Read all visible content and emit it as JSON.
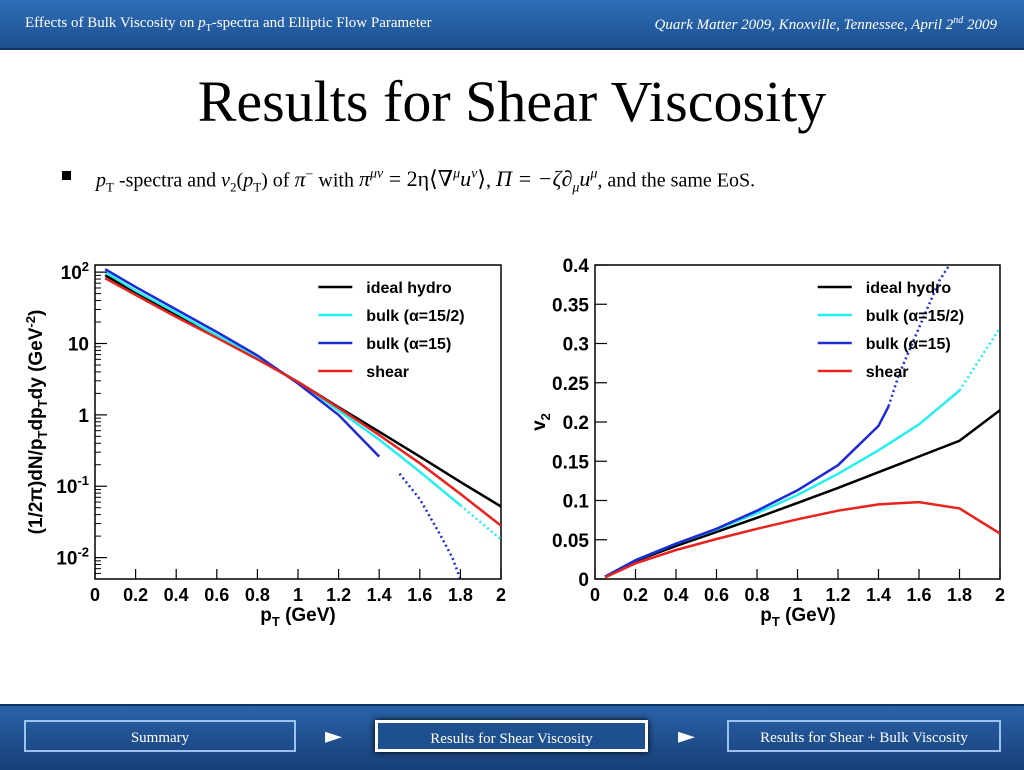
{
  "header": {
    "left_prefix": "Effects of Bulk Viscosity on ",
    "left_p": "p",
    "left_sub": "T",
    "left_suffix": "-spectra and Elliptic Flow Parameter",
    "right_prefix": "Quark Matter 2009, Knoxville, Tennessee, April 2",
    "right_sup": "nd",
    "right_suffix": " 2009"
  },
  "slide_title": "Results for Shear Viscosity",
  "bullet": {
    "p": "p",
    "sub_T": "T",
    "t1": " -spectra and ",
    "v": "v",
    "sub_2": "2",
    "t2": "(",
    "t3": ") of ",
    "pion": "π",
    "pion_sup": "−",
    "t4": " with ",
    "eq1": "π",
    "eq1_sup": "μν",
    "eq1_rest": " = 2η⟨∇",
    "eq1_sup2": "μ",
    "eq1_u": "u",
    "eq1_sup3": "ν",
    "eq1_close": "⟩",
    "comma1": ", ",
    "eq2": "Π = −ζ∂",
    "eq2_sub": "μ",
    "eq2_u": "u",
    "eq2_sup": "μ",
    "t5": ", and the same EoS."
  },
  "legend": [
    {
      "label": "ideal hydro",
      "color": "#000000"
    },
    {
      "label": "bulk (α=15/2)",
      "color": "#22f0f0"
    },
    {
      "label": "bulk (α=15)",
      "color": "#1d2bd6"
    },
    {
      "label": "shear",
      "color": "#e8221d"
    }
  ],
  "chart_data": [
    {
      "type": "line",
      "ylabel": "(1/2π)dN/pTdpTdy (GeV^-2)",
      "xlabel": "pT (GeV)",
      "xlim": [
        0,
        2
      ],
      "ylim_log10": [
        -2.3,
        2.1
      ],
      "log_y": true,
      "xticks": [
        "0",
        "0.2",
        "0.4",
        "0.6",
        "0.8",
        "1",
        "1.2",
        "1.4",
        "1.6",
        "1.8",
        "2"
      ],
      "yticks": [
        {
          "base": "10",
          "exp": "2"
        },
        {
          "base": "10",
          "exp": ""
        },
        {
          "base": "1",
          "exp": ""
        },
        {
          "base": "10",
          "exp": "-1"
        },
        {
          "base": "10",
          "exp": "-2"
        }
      ],
      "series": [
        {
          "name": "ideal hydro",
          "x": [
            0.05,
            0.2,
            0.4,
            0.6,
            0.8,
            1.0,
            1.2,
            1.4,
            1.6,
            1.8,
            2.0
          ],
          "y": [
            90,
            52,
            25,
            12.5,
            6.2,
            2.9,
            1.28,
            0.58,
            0.26,
            0.115,
            0.052
          ]
        },
        {
          "name": "bulk (α=15/2)",
          "x": [
            0.05,
            0.2,
            0.4,
            0.6,
            0.8,
            1.0,
            1.2,
            1.4,
            1.6,
            1.8,
            2.0
          ],
          "y": [
            100,
            55,
            27,
            13,
            6.3,
            2.85,
            1.15,
            0.45,
            0.16,
            0.054,
            0.018
          ],
          "dashed_from": 1.8
        },
        {
          "name": "bulk (α=15)",
          "x": [
            0.05,
            0.2,
            0.4,
            0.6,
            0.8,
            1.0,
            1.2,
            1.4,
            1.5,
            1.6,
            1.7,
            1.76,
            1.8
          ],
          "y": [
            110,
            62,
            30,
            14.5,
            6.8,
            2.75,
            1.0,
            0.26,
            0.15,
            0.066,
            0.021,
            0.01,
            0.005
          ],
          "dashed_from": 1.45
        },
        {
          "name": "shear",
          "x": [
            0.05,
            0.2,
            0.4,
            0.6,
            0.8,
            1.0,
            1.2,
            1.4,
            1.6,
            1.8,
            2.0
          ],
          "y": [
            82,
            48,
            23.5,
            12,
            6.0,
            2.9,
            1.25,
            0.52,
            0.21,
            0.078,
            0.028
          ]
        }
      ]
    },
    {
      "type": "line",
      "ylabel": "v2",
      "xlabel": "pT (GeV)",
      "xlim": [
        0,
        2
      ],
      "ylim": [
        0,
        0.4
      ],
      "xticks": [
        "0",
        "0.2",
        "0.4",
        "0.6",
        "0.8",
        "1",
        "1.2",
        "1.4",
        "1.6",
        "1.8",
        "2"
      ],
      "yticks": [
        "0",
        "0.05",
        "0.1",
        "0.15",
        "0.2",
        "0.25",
        "0.3",
        "0.35",
        "0.4"
      ],
      "series": [
        {
          "name": "ideal hydro",
          "x": [
            0.05,
            0.2,
            0.4,
            0.6,
            0.8,
            1.0,
            1.2,
            1.4,
            1.6,
            1.8,
            2.0
          ],
          "y": [
            0.003,
            0.023,
            0.042,
            0.06,
            0.078,
            0.097,
            0.116,
            0.136,
            0.156,
            0.176,
            0.215
          ]
        },
        {
          "name": "bulk (α=15/2)",
          "x": [
            0.05,
            0.2,
            0.4,
            0.6,
            0.8,
            1.0,
            1.2,
            1.4,
            1.6,
            1.8,
            2.0
          ],
          "y": [
            0.003,
            0.024,
            0.045,
            0.063,
            0.084,
            0.107,
            0.134,
            0.164,
            0.197,
            0.24,
            0.32
          ],
          "dashed_from": 1.8
        },
        {
          "name": "bulk (α=15)",
          "x": [
            0.05,
            0.2,
            0.4,
            0.6,
            0.8,
            1.0,
            1.2,
            1.4,
            1.45,
            1.5,
            1.6,
            1.7,
            1.75
          ],
          "y": [
            0.003,
            0.024,
            0.045,
            0.064,
            0.087,
            0.113,
            0.145,
            0.195,
            0.22,
            0.26,
            0.32,
            0.38,
            0.4
          ],
          "dashed_from": 1.45
        },
        {
          "name": "shear",
          "x": [
            0.05,
            0.2,
            0.4,
            0.6,
            0.8,
            1.0,
            1.2,
            1.4,
            1.6,
            1.8,
            2.0
          ],
          "y": [
            0.002,
            0.02,
            0.037,
            0.051,
            0.064,
            0.076,
            0.087,
            0.095,
            0.098,
            0.09,
            0.058
          ]
        }
      ]
    }
  ],
  "nav": {
    "summary": "Summary",
    "current": "Results for Shear Viscosity",
    "next": "Results for Shear + Bulk Viscosity",
    "arrow": "►"
  }
}
